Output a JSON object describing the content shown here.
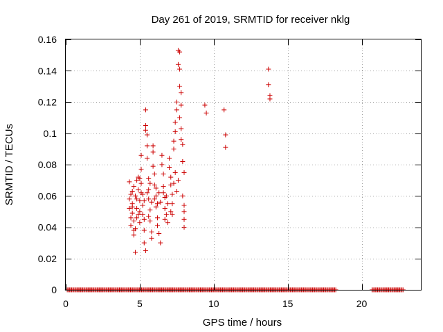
{
  "chart_data": {
    "type": "scatter",
    "title": "Day 261 of 2019, SRMTID for receiver nklg",
    "xlabel": "GPS time / hours",
    "ylabel": "SRMTID / TECUs",
    "xlim": [
      0,
      24
    ],
    "ylim": [
      0,
      0.16
    ],
    "x_ticks": [
      0,
      5,
      10,
      15,
      20
    ],
    "x_tick_labels": [
      "0",
      "5",
      "10",
      "15",
      "20"
    ],
    "y_ticks": [
      0,
      0.02,
      0.04,
      0.06,
      0.08,
      0.1,
      0.12,
      0.14,
      0.16
    ],
    "y_tick_labels": [
      "0",
      "0.02",
      "0.04",
      "0.06",
      "0.08",
      "0.1",
      "0.12",
      "0.14",
      "0.16"
    ],
    "grid": true,
    "grid_style": "dotted",
    "series": [
      {
        "marker": "plus",
        "color": "#cc0000",
        "points": [
          [
            4.3,
            0.069
          ],
          [
            4.3,
            0.058
          ],
          [
            4.3,
            0.052
          ],
          [
            4.4,
            0.046
          ],
          [
            4.4,
            0.041
          ],
          [
            4.5,
            0.063
          ],
          [
            4.5,
            0.055
          ],
          [
            4.5,
            0.049
          ],
          [
            4.6,
            0.066
          ],
          [
            4.6,
            0.038
          ],
          [
            4.6,
            0.035
          ],
          [
            4.7,
            0.024
          ],
          [
            4.7,
            0.06
          ],
          [
            4.8,
            0.052
          ],
          [
            4.8,
            0.046
          ],
          [
            4.8,
            0.07
          ],
          [
            4.9,
            0.072
          ],
          [
            4.9,
            0.064
          ],
          [
            5.0,
            0.057
          ],
          [
            5.0,
            0.05
          ],
          [
            5.0,
            0.043
          ],
          [
            5.1,
            0.086
          ],
          [
            5.1,
            0.077
          ],
          [
            5.1,
            0.068
          ],
          [
            5.2,
            0.061
          ],
          [
            5.2,
            0.054
          ],
          [
            5.3,
            0.045
          ],
          [
            5.3,
            0.038
          ],
          [
            5.3,
            0.03
          ],
          [
            5.4,
            0.025
          ],
          [
            5.4,
            0.115
          ],
          [
            5.4,
            0.105
          ],
          [
            5.4,
            0.102
          ],
          [
            5.5,
            0.099
          ],
          [
            5.5,
            0.092
          ],
          [
            5.5,
            0.084
          ],
          [
            5.6,
            0.071
          ],
          [
            5.6,
            0.064
          ],
          [
            5.6,
            0.058
          ],
          [
            5.7,
            0.051
          ],
          [
            5.7,
            0.044
          ],
          [
            5.8,
            0.037
          ],
          [
            5.8,
            0.033
          ],
          [
            5.9,
            0.092
          ],
          [
            5.9,
            0.088
          ],
          [
            5.9,
            0.079
          ],
          [
            6.0,
            0.074
          ],
          [
            6.0,
            0.067
          ],
          [
            6.1,
            0.06
          ],
          [
            6.1,
            0.053
          ],
          [
            6.2,
            0.046
          ],
          [
            6.2,
            0.041
          ],
          [
            6.3,
            0.036
          ],
          [
            6.4,
            0.03
          ],
          [
            6.5,
            0.086
          ],
          [
            6.5,
            0.08
          ],
          [
            6.6,
            0.074
          ],
          [
            6.6,
            0.066
          ],
          [
            6.7,
            0.059
          ],
          [
            6.7,
            0.052
          ],
          [
            6.8,
            0.048
          ],
          [
            6.9,
            0.043
          ],
          [
            7.0,
            0.084
          ],
          [
            7.0,
            0.078
          ],
          [
            7.1,
            0.072
          ],
          [
            7.1,
            0.067
          ],
          [
            7.2,
            0.061
          ],
          [
            7.2,
            0.055
          ],
          [
            7.3,
            0.095
          ],
          [
            7.3,
            0.09
          ],
          [
            7.4,
            0.107
          ],
          [
            7.4,
            0.101
          ],
          [
            7.5,
            0.12
          ],
          [
            7.5,
            0.115
          ],
          [
            7.6,
            0.153
          ],
          [
            7.6,
            0.144
          ],
          [
            7.7,
            0.152
          ],
          [
            7.7,
            0.141
          ],
          [
            7.7,
            0.13
          ],
          [
            7.8,
            0.126
          ],
          [
            7.8,
            0.118
          ],
          [
            7.8,
            0.103
          ],
          [
            7.9,
            0.093
          ],
          [
            7.9,
            0.082
          ],
          [
            8.0,
            0.075
          ],
          [
            8.0,
            0.054
          ],
          [
            8.0,
            0.05
          ],
          [
            8.0,
            0.045
          ],
          [
            8.0,
            0.04
          ],
          [
            4.4,
            0.061
          ],
          [
            4.5,
            0.053
          ],
          [
            4.6,
            0.044
          ],
          [
            4.7,
            0.039
          ],
          [
            4.8,
            0.058
          ],
          [
            4.9,
            0.048
          ],
          [
            5.0,
            0.071
          ],
          [
            5.1,
            0.062
          ],
          [
            5.2,
            0.048
          ],
          [
            5.3,
            0.057
          ],
          [
            5.5,
            0.062
          ],
          [
            5.6,
            0.047
          ],
          [
            5.7,
            0.068
          ],
          [
            5.8,
            0.056
          ],
          [
            6.0,
            0.058
          ],
          [
            6.1,
            0.065
          ],
          [
            6.2,
            0.055
          ],
          [
            6.3,
            0.062
          ],
          [
            6.4,
            0.056
          ],
          [
            6.6,
            0.062
          ],
          [
            6.7,
            0.045
          ],
          [
            6.8,
            0.06
          ],
          [
            6.9,
            0.055
          ],
          [
            7.1,
            0.05
          ],
          [
            7.2,
            0.048
          ],
          [
            7.3,
            0.068
          ],
          [
            7.4,
            0.075
          ],
          [
            7.5,
            0.063
          ],
          [
            7.6,
            0.07
          ],
          [
            7.7,
            0.11
          ],
          [
            7.8,
            0.096
          ],
          [
            7.9,
            0.06
          ],
          [
            9.4,
            0.118
          ],
          [
            9.5,
            0.113
          ],
          [
            10.7,
            0.115
          ],
          [
            10.8,
            0.099
          ],
          [
            10.8,
            0.091
          ],
          [
            13.7,
            0.141
          ],
          [
            13.7,
            0.131
          ],
          [
            13.8,
            0.124
          ],
          [
            13.8,
            0.122
          ]
        ]
      },
      {
        "marker": "plus",
        "color": "#cc0000",
        "zero_segments": [
          [
            0.1,
            18.3
          ],
          [
            20.7,
            22.8
          ]
        ],
        "zero_value": 0
      }
    ]
  }
}
